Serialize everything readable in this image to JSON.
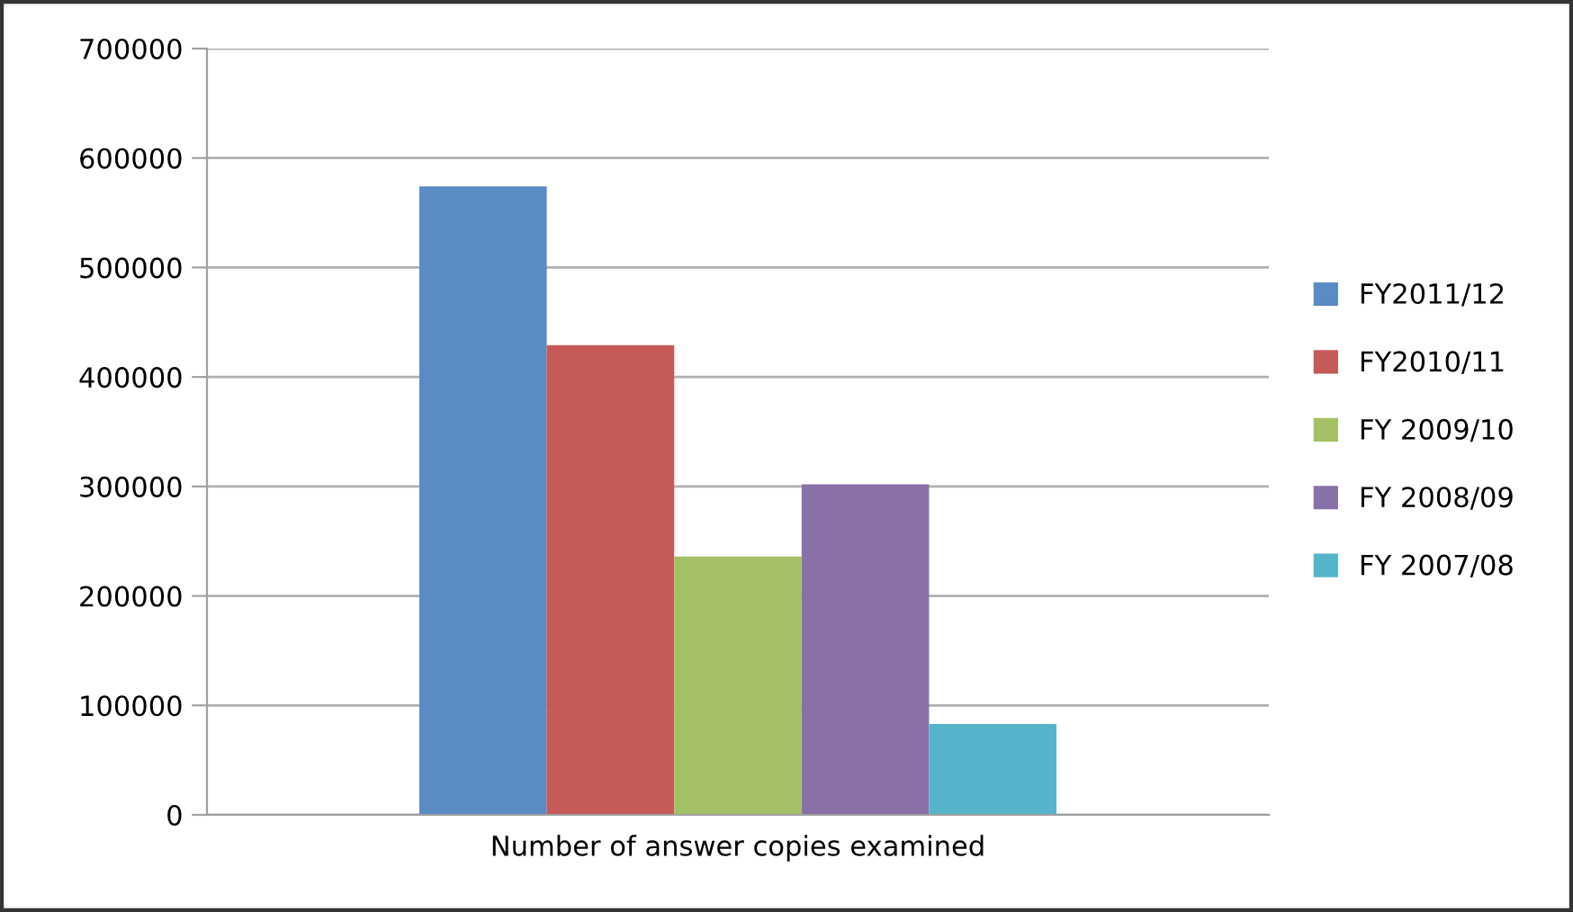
{
  "chart_data": {
    "type": "bar",
    "categories": [
      "Number of answer copies examined"
    ],
    "series": [
      {
        "name": "FY2011/12",
        "color": "#5b8bc4",
        "values": [
          574000
        ]
      },
      {
        "name": "FY2010/11",
        "color": "#c65a58",
        "values": [
          429000
        ]
      },
      {
        "name": "FY 2009/10",
        "color": "#a4c064",
        "values": [
          236000
        ]
      },
      {
        "name": "FY 2008/09",
        "color": "#8a70a9",
        "values": [
          302000
        ]
      },
      {
        "name": "FY 2007/08",
        "color": "#55b4ca",
        "values": [
          83000
        ]
      }
    ],
    "ylim": [
      0,
      700000
    ],
    "yticks": [
      0,
      100000,
      200000,
      300000,
      400000,
      500000,
      600000,
      700000
    ],
    "grid": "y",
    "legend": "right"
  }
}
